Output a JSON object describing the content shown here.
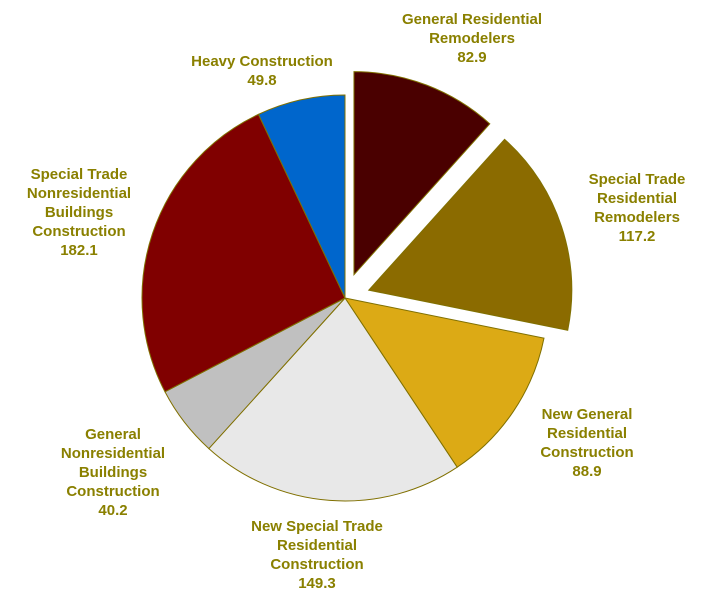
{
  "chart_data": {
    "type": "pie",
    "categories": [
      "General Residential Remodelers",
      "Special Trade Residential Remodelers",
      "New General Residential Construction",
      "New Special Trade Residential Construction",
      "General Nonresidential Buildings Construction",
      "Special Trade Nonresidential Buildings Construction",
      "Heavy Construction"
    ],
    "values": [
      82.9,
      117.2,
      88.9,
      149.3,
      40.2,
      182.1,
      49.8
    ],
    "colors": [
      "#4a0000",
      "#8b6b00",
      "#dcaa15",
      "#e8e8e8",
      "#c0c0c0",
      "#800000",
      "#0066cc"
    ],
    "explode": [
      true,
      true,
      false,
      false,
      false,
      false,
      false
    ]
  }
}
